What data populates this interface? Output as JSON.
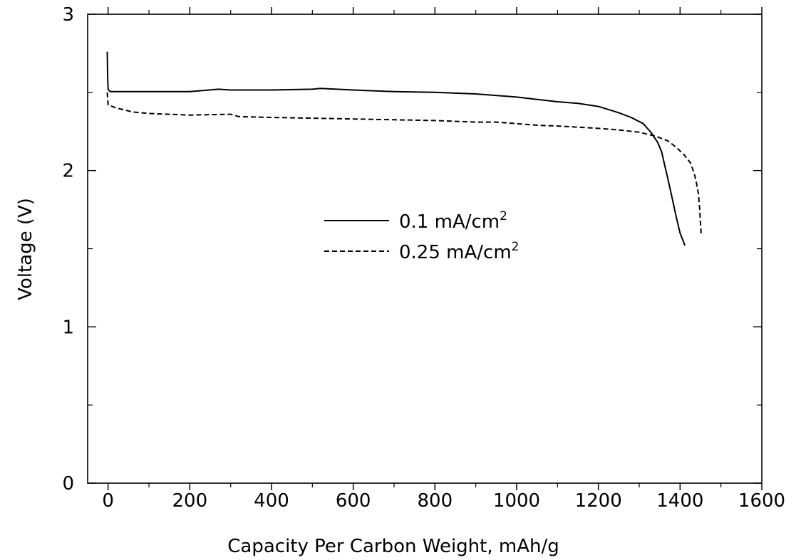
{
  "chart_data": {
    "type": "line",
    "title": "",
    "xlabel": "Capacity Per Carbon Weight, mAh/g",
    "ylabel": "Voltage (V)",
    "xlim": [
      -50,
      1600
    ],
    "ylim": [
      0,
      3
    ],
    "xticks": [
      0,
      200,
      400,
      600,
      800,
      1000,
      1200,
      1400,
      1600
    ],
    "xtick_labels": [
      "0",
      "200",
      "400",
      "600",
      "800",
      "1000",
      "1200",
      "1400",
      "1600"
    ],
    "yticks": [
      0,
      1,
      2,
      3
    ],
    "ytick_labels": [
      "0",
      "1",
      "2",
      "3"
    ],
    "grid": false,
    "legend_position": "center",
    "series": [
      {
        "name": "0.1 mA/cm²",
        "label_base": "0.1 mA/cm",
        "label_sup": "2",
        "style": "solid",
        "color": "#000000",
        "x": [
          -2,
          -1,
          0,
          5,
          20,
          100,
          200,
          270,
          300,
          400,
          500,
          520,
          600,
          700,
          800,
          900,
          1000,
          1050,
          1100,
          1150,
          1200,
          1250,
          1280,
          1310,
          1330,
          1345,
          1355,
          1360,
          1370,
          1380,
          1390,
          1400,
          1412
        ],
        "y": [
          2.76,
          2.6,
          2.52,
          2.505,
          2.505,
          2.505,
          2.505,
          2.52,
          2.515,
          2.515,
          2.52,
          2.525,
          2.515,
          2.505,
          2.5,
          2.49,
          2.47,
          2.455,
          2.44,
          2.43,
          2.41,
          2.37,
          2.34,
          2.3,
          2.24,
          2.18,
          2.12,
          2.06,
          1.95,
          1.83,
          1.71,
          1.6,
          1.52
        ]
      },
      {
        "name": "0.25 mA/cm²",
        "label_base": "0.25 mA/cm",
        "label_sup": "2",
        "style": "dashed",
        "color": "#000000",
        "x": [
          -2,
          0,
          20,
          60,
          100,
          200,
          300,
          320,
          400,
          500,
          600,
          700,
          800,
          900,
          950,
          1000,
          1050,
          1100,
          1200,
          1250,
          1300,
          1340,
          1370,
          1390,
          1410,
          1425,
          1435,
          1440,
          1445,
          1448,
          1450,
          1452
        ],
        "y": [
          2.5,
          2.42,
          2.4,
          2.375,
          2.365,
          2.355,
          2.36,
          2.345,
          2.34,
          2.335,
          2.33,
          2.325,
          2.32,
          2.31,
          2.31,
          2.3,
          2.29,
          2.285,
          2.27,
          2.26,
          2.245,
          2.22,
          2.19,
          2.15,
          2.1,
          2.05,
          1.98,
          1.92,
          1.85,
          1.75,
          1.66,
          1.58
        ]
      }
    ]
  }
}
